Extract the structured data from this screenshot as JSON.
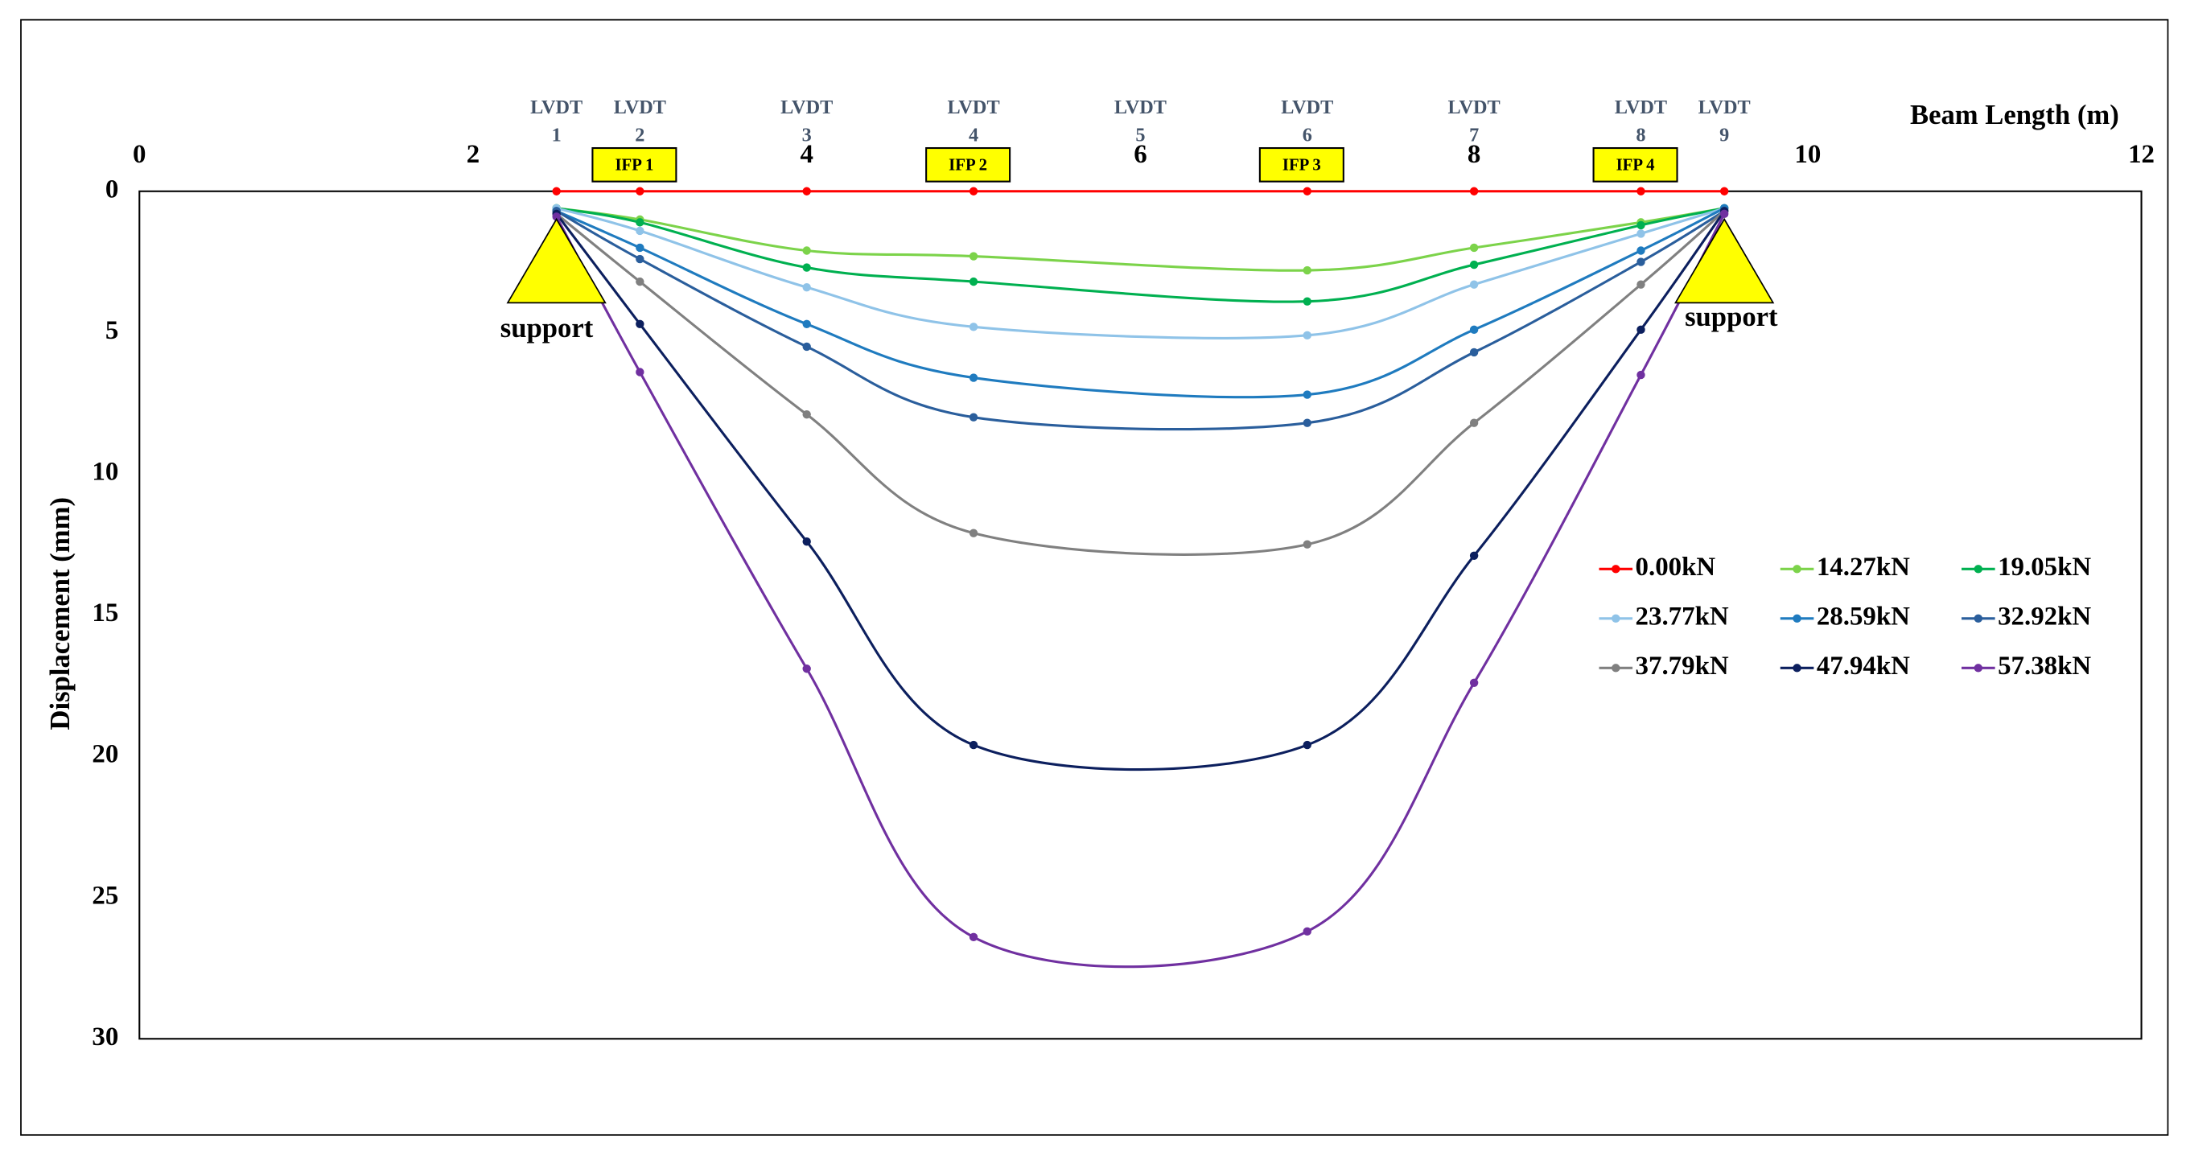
{
  "chart_data": {
    "type": "line",
    "x_label": "Beam Length (m)",
    "y_label": "Displacement (mm)",
    "xlim": [
      0,
      12
    ],
    "xticks": [
      0,
      2,
      4,
      6,
      8,
      10,
      12
    ],
    "ylim": [
      0,
      30
    ],
    "yticks": [
      0,
      5,
      10,
      15,
      20,
      25,
      30
    ],
    "y_inverted": true,
    "x_axis_position": "top",
    "legend_position": "right",
    "x": [
      2.5,
      3,
      4,
      5,
      7,
      8,
      9,
      9.5
    ],
    "series": [
      {
        "name": "0.00kN",
        "color": "#ff0000",
        "values": [
          0,
          0,
          0,
          0,
          0,
          0,
          0,
          0
        ]
      },
      {
        "name": "14.27kN",
        "color": "#7cd34a",
        "values": [
          0.6,
          1.0,
          2.1,
          2.3,
          2.8,
          2.0,
          1.1,
          0.6
        ]
      },
      {
        "name": "19.05kN",
        "color": "#00b050",
        "values": [
          0.6,
          1.1,
          2.7,
          3.2,
          3.9,
          2.6,
          1.2,
          0.6
        ]
      },
      {
        "name": "23.77kN",
        "color": "#8fc3e8",
        "values": [
          0.6,
          1.4,
          3.4,
          4.8,
          5.1,
          3.3,
          1.5,
          0.6
        ]
      },
      {
        "name": "28.59kN",
        "color": "#1f7bbf",
        "values": [
          0.7,
          2.0,
          4.7,
          6.6,
          7.2,
          4.9,
          2.1,
          0.6
        ]
      },
      {
        "name": "32.92kN",
        "color": "#2a5e9c",
        "values": [
          0.7,
          2.4,
          5.5,
          8.0,
          8.2,
          5.7,
          2.5,
          0.7
        ]
      },
      {
        "name": "37.79kN",
        "color": "#808080",
        "values": [
          0.8,
          3.2,
          7.9,
          12.1,
          12.5,
          8.2,
          3.3,
          0.7
        ]
      },
      {
        "name": "47.94kN",
        "color": "#0c1f5e",
        "values": [
          0.8,
          4.7,
          12.4,
          19.6,
          19.6,
          12.9,
          4.9,
          0.7
        ]
      },
      {
        "name": "57.38kN",
        "color": "#7030a0",
        "values": [
          0.9,
          6.4,
          16.9,
          26.4,
          26.2,
          17.4,
          6.5,
          0.8
        ]
      }
    ],
    "lvdts": [
      {
        "text": "LVDT",
        "number": "1",
        "x": 2.5
      },
      {
        "text": "LVDT",
        "number": "2",
        "x": 3
      },
      {
        "text": "LVDT",
        "number": "3",
        "x": 4
      },
      {
        "text": "LVDT",
        "number": "4",
        "x": 5
      },
      {
        "text": "LVDT",
        "number": "5",
        "x": 6
      },
      {
        "text": "LVDT",
        "number": "6",
        "x": 7
      },
      {
        "text": "LVDT",
        "number": "7",
        "x": 8
      },
      {
        "text": "LVDT",
        "number": "8",
        "x": 9
      },
      {
        "text": "LVDT",
        "number": "9",
        "x": 9.5
      }
    ],
    "ifps": [
      {
        "label": "IFP 1",
        "x": 3
      },
      {
        "label": "IFP 2",
        "x": 5
      },
      {
        "label": "IFP 3",
        "x": 7
      },
      {
        "label": "IFP 4",
        "x": 9
      }
    ],
    "supports": [
      {
        "label": "support",
        "x": 2.5
      },
      {
        "label": "support",
        "x": 9.5
      }
    ]
  }
}
